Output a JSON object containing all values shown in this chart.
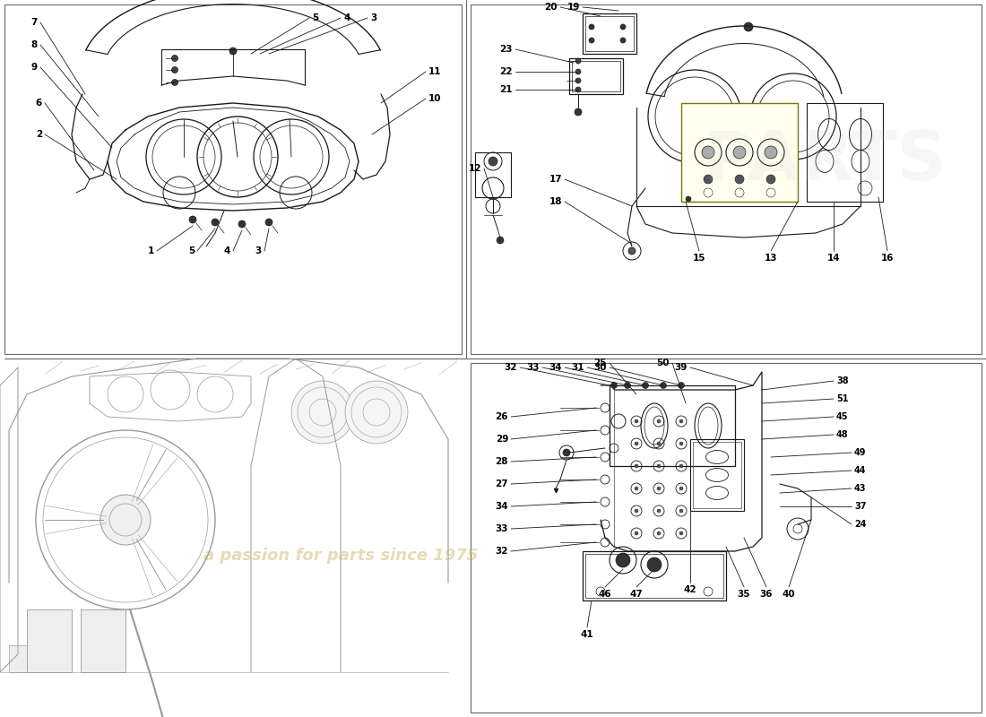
{
  "bg": "#ffffff",
  "lc": "#1a1a1a",
  "lc_light": "#555555",
  "lc_gray": "#888888",
  "watermark_color": "#c8b060",
  "watermark_alpha": 0.45,
  "border_color": "#666666",
  "label_fontsize": 7.5,
  "label_fontsize_sm": 7.0
}
